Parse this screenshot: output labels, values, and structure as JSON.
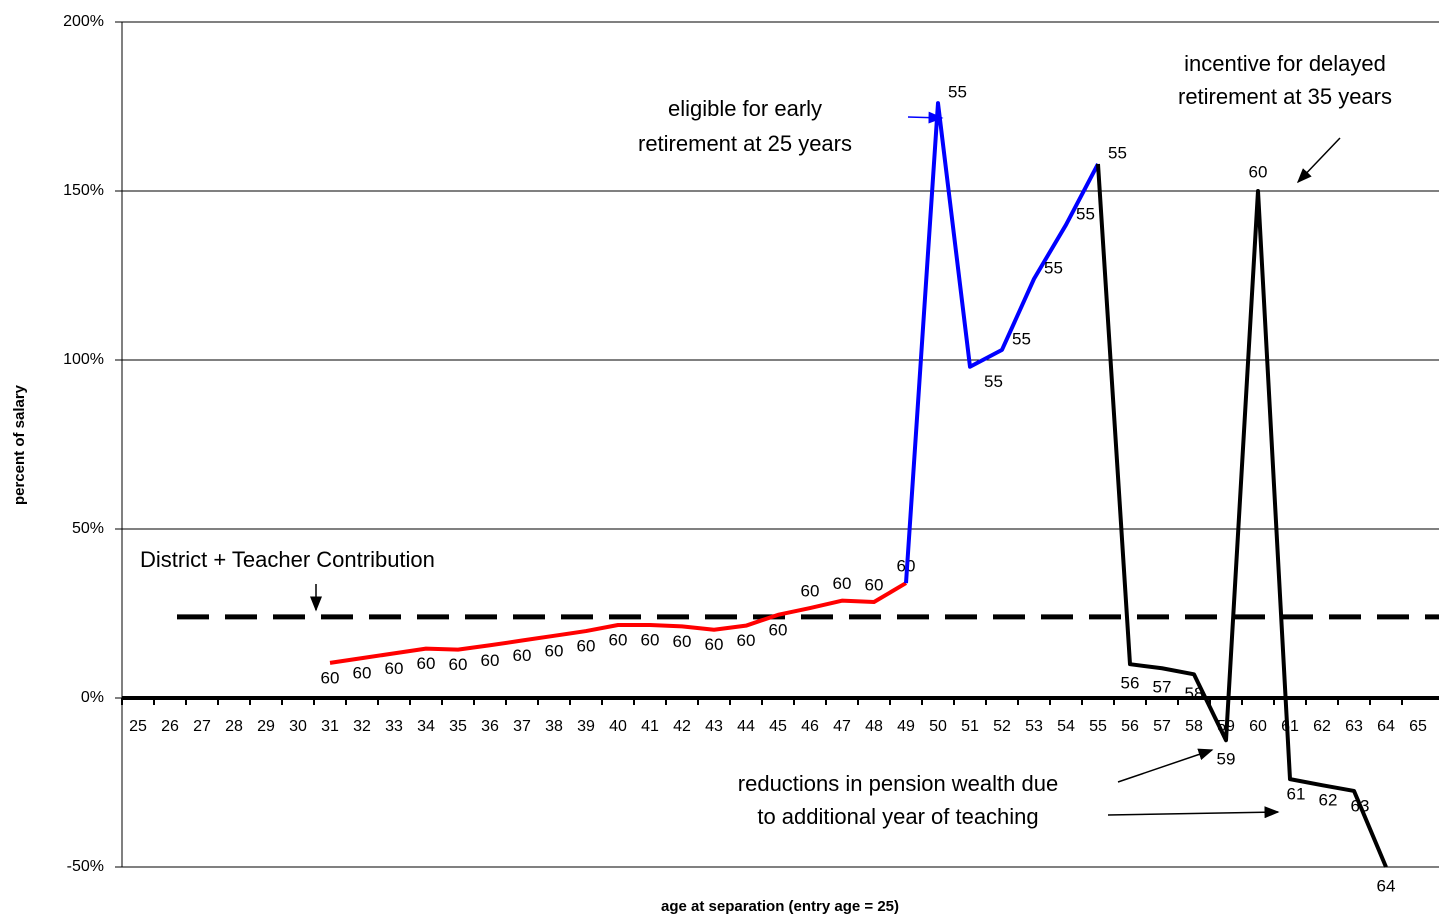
{
  "chart_data": {
    "type": "line",
    "x_label": "age at separation (entry age = 25)",
    "y_label": "percent of salary",
    "categories": [
      "25",
      "26",
      "27",
      "28",
      "29",
      "30",
      "31",
      "32",
      "33",
      "34",
      "35",
      "36",
      "37",
      "38",
      "39",
      "40",
      "41",
      "42",
      "43",
      "44",
      "45",
      "46",
      "47",
      "48",
      "49",
      "50",
      "51",
      "52",
      "53",
      "54",
      "55",
      "56",
      "57",
      "58",
      "59",
      "60",
      "61",
      "62",
      "63",
      "64",
      "65"
    ],
    "ylim": [
      -50,
      200
    ],
    "yticks": [
      {
        "value": -50,
        "label": "-50%"
      },
      {
        "value": 0,
        "label": "0%"
      },
      {
        "value": 50,
        "label": "50%"
      },
      {
        "value": 100,
        "label": "100%"
      },
      {
        "value": 150,
        "label": "150%"
      },
      {
        "value": 200,
        "label": "200%"
      }
    ],
    "grid": true,
    "series": [
      {
        "color": "#ff0000",
        "values": [
          null,
          null,
          null,
          null,
          null,
          null,
          10.4,
          11.8,
          13.2,
          14.6,
          14.3,
          15.6,
          17,
          18.4,
          19.8,
          21.6,
          21.6,
          21.2,
          20.2,
          21.4,
          24.6,
          26.6,
          28.8,
          28.4,
          34,
          null,
          null,
          null,
          null,
          null,
          null,
          null,
          null,
          null,
          null,
          null,
          null,
          null,
          null,
          null,
          null
        ],
        "point_labels": [
          null,
          null,
          null,
          null,
          null,
          null,
          "60",
          "60",
          "60",
          "60",
          "60",
          "60",
          "60",
          "60",
          "60",
          "60",
          "60",
          "60",
          "60",
          "60",
          "60",
          "60",
          "60",
          "60",
          "60",
          null,
          null,
          null,
          null,
          null,
          null,
          null,
          null,
          null,
          null,
          null,
          null,
          null,
          null,
          null,
          null
        ]
      },
      {
        "color": "#0000ff",
        "values": [
          null,
          null,
          null,
          null,
          null,
          null,
          null,
          null,
          null,
          null,
          null,
          null,
          null,
          null,
          null,
          null,
          null,
          null,
          null,
          null,
          null,
          null,
          null,
          null,
          34,
          176,
          98,
          103,
          124,
          140,
          158,
          null,
          null,
          null,
          null,
          null,
          null,
          null,
          null,
          null,
          null
        ],
        "point_labels": [
          null,
          null,
          null,
          null,
          null,
          null,
          null,
          null,
          null,
          null,
          null,
          null,
          null,
          null,
          null,
          null,
          null,
          null,
          null,
          null,
          null,
          null,
          null,
          null,
          null,
          "55",
          "55",
          "55",
          "55",
          "55",
          "55",
          null,
          null,
          null,
          null,
          null,
          null,
          null,
          null,
          null,
          null
        ]
      },
      {
        "color": "#000000",
        "values": [
          null,
          null,
          null,
          null,
          null,
          null,
          null,
          null,
          null,
          null,
          null,
          null,
          null,
          null,
          null,
          null,
          null,
          null,
          null,
          null,
          null,
          null,
          null,
          null,
          null,
          null,
          null,
          null,
          null,
          null,
          158,
          10,
          8.8,
          7,
          -12.5,
          150,
          -24,
          -25.8,
          -27.5,
          -50,
          null
        ],
        "point_labels": [
          null,
          null,
          null,
          null,
          null,
          null,
          null,
          null,
          null,
          null,
          null,
          null,
          null,
          null,
          null,
          null,
          null,
          null,
          null,
          null,
          null,
          null,
          null,
          null,
          null,
          null,
          null,
          null,
          null,
          null,
          null,
          "56",
          "57",
          "58",
          "59",
          "60",
          "61",
          "62",
          "63",
          "64",
          null
        ]
      }
    ],
    "reference_line": {
      "value": 24,
      "label": "District + Teacher Contribution"
    },
    "annotations": {
      "early": [
        "eligible for early",
        "retirement at 25 years"
      ],
      "delayed": [
        "incentive for delayed",
        "retirement at 35 years"
      ],
      "reductions": [
        "reductions in pension wealth due",
        "to additional year of teaching"
      ]
    }
  }
}
